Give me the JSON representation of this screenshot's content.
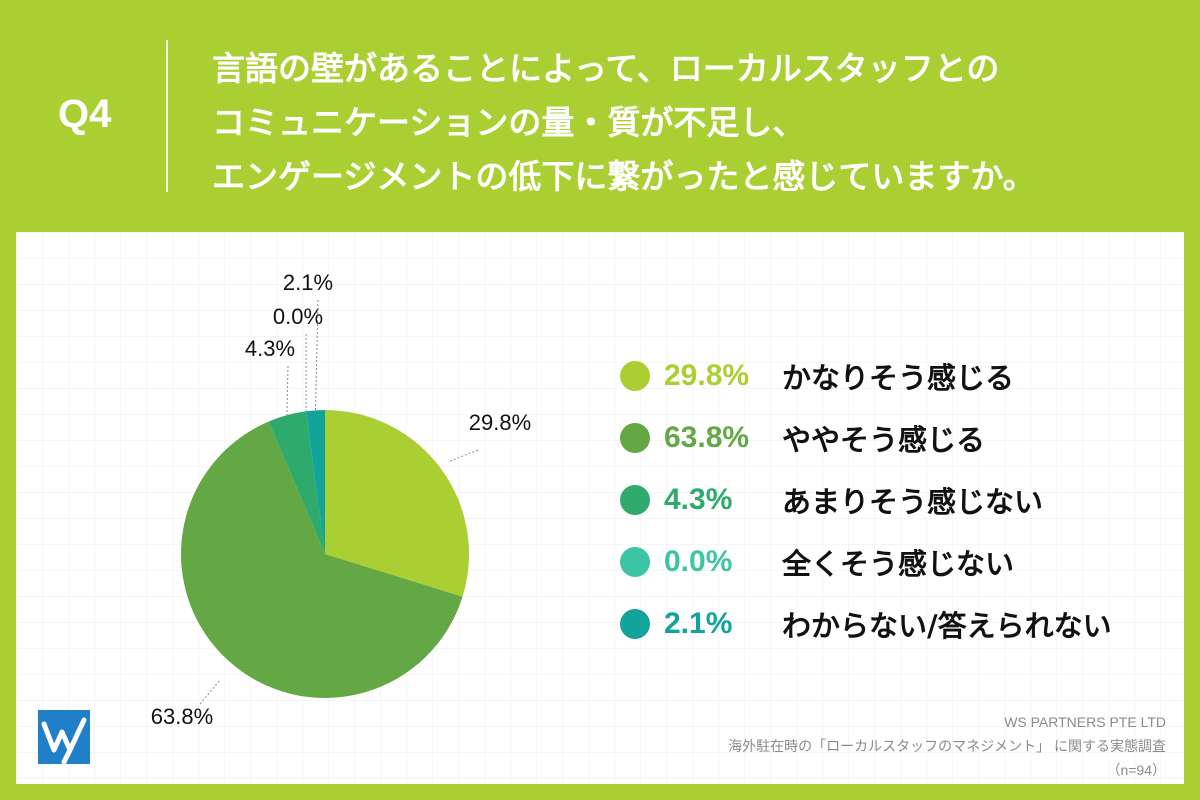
{
  "header": {
    "q_label": "Q4",
    "question_lines": [
      "言語の壁があることによって、ローカルスタッフとの",
      "コミュニケーションの量・質が不足し、",
      "エンゲージメントの低下に繋がったと感じていますか。"
    ]
  },
  "chart_data": {
    "type": "pie",
    "slices": [
      {
        "label": "かなりそう感じる",
        "value": 29.8,
        "display": "29.8%",
        "color": "#a9cf33"
      },
      {
        "label": "ややそう感じる",
        "value": 63.8,
        "display": "63.8%",
        "color": "#63a844"
      },
      {
        "label": "あまりそう感じない",
        "value": 4.3,
        "display": "4.3%",
        "color": "#2eaa6c"
      },
      {
        "label": "全くそう感じない",
        "value": 0.0,
        "display": "0.0%",
        "color": "#3cc4a4"
      },
      {
        "label": "わからない/答えられない",
        "value": 2.1,
        "display": "2.1%",
        "color": "#12a39a"
      }
    ],
    "start": "12 o'clock",
    "direction": "clockwise",
    "legend": "right"
  },
  "footer": {
    "company": "WS PARTNERS PTE LTD",
    "survey": "海外駐在時の「ローカルスタッフのマネジメント」 に関する実態調査",
    "sample": "（n=94）"
  },
  "colors": {
    "background": "#a9cf33",
    "panel": "#ffffff",
    "logo": "#1f7fc9"
  }
}
